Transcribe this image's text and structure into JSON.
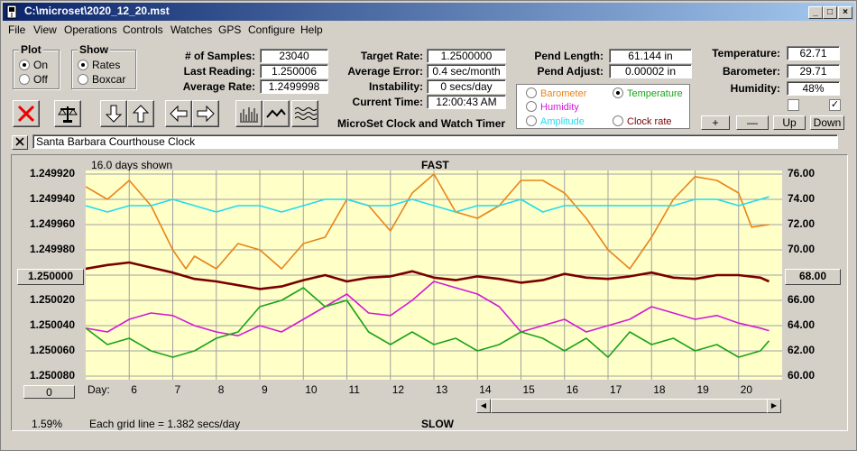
{
  "window": {
    "title": "C:\\microset\\2020_12_20.mst"
  },
  "menu": [
    "File",
    "View",
    "Operations",
    "Controls",
    "Watches",
    "GPS",
    "Configure",
    "Help"
  ],
  "plot_group": {
    "title": "Plot",
    "on": "On",
    "off": "Off",
    "selected": "On"
  },
  "show_group": {
    "title": "Show",
    "rates": "Rates",
    "boxcar": "Boxcar",
    "selected": "Rates"
  },
  "stats": {
    "samples_label": "# of Samples:",
    "samples": "23040",
    "last_reading_label": "Last Reading:",
    "last_reading": "1.250006",
    "average_rate_label": "Average Rate:",
    "average_rate": "1.2499998",
    "target_rate_label": "Target Rate:",
    "target_rate": "1.2500000",
    "average_error_label": "Average Error:",
    "average_error": "0.4 sec/month",
    "instability_label": "Instability:",
    "instability": "0 secs/day",
    "current_time_label": "Current Time:",
    "current_time": "12:00:43 AM",
    "pend_length_label": "Pend Length:",
    "pend_length": "61.144 in",
    "pend_adjust_label": "Pend Adjust:",
    "pend_adjust": "0.00002 in",
    "temperature_label": "Temperature:",
    "temperature": "62.71",
    "barometer_label": "Barometer:",
    "barometer": "29.71",
    "humidity_label": "Humidity:",
    "humidity": "48%"
  },
  "app_caption": "MicroSet Clock and Watch Timer",
  "legend": {
    "barometer": "Barometer",
    "temperature": "Temperature",
    "humidity": "Humidity",
    "amplitude": "Amplitude",
    "clock_rate": "Clock rate",
    "selected": "Temperature"
  },
  "colors": {
    "barometer": "#e8841a",
    "temperature": "#19a319",
    "humidity": "#d41ad4",
    "amplitude": "#22dcee",
    "clock_rate": "#7a0000",
    "plot_bg": "#ffffc8"
  },
  "scale_buttons": {
    "plus": "+",
    "minus": "—",
    "up": "Up",
    "down": "Down"
  },
  "clock_name": "Santa Barbara Courthouse Clock",
  "chart": {
    "days_shown": "16.0 days shown",
    "fast_label": "FAST",
    "slow_label": "SLOW",
    "center_left": "1.250000",
    "center_right": "68.00",
    "zero_button": "0",
    "day_prefix": "Day:",
    "grid_note": "Each grid line = 1.382 secs/day",
    "percent": "1.59%"
  },
  "chart_data": {
    "type": "line",
    "title": "FAST / SLOW",
    "xlabel": "Day",
    "x_ticks": [
      6,
      7,
      8,
      9,
      10,
      11,
      12,
      13,
      14,
      15,
      16,
      17,
      18,
      19,
      20
    ],
    "xlim": [
      5.0,
      21.0
    ],
    "left_axis": {
      "ticks": [
        "1.249920",
        "1.249940",
        "1.249960",
        "1.249980",
        "1.250000",
        "1.250020",
        "1.250040",
        "1.250060",
        "1.250080"
      ],
      "ylim": [
        1.24992,
        1.25008
      ],
      "reversed": true
    },
    "right_axis": {
      "ticks": [
        "76.00",
        "74.00",
        "72.00",
        "70.00",
        "68.00",
        "66.00",
        "64.00",
        "62.00",
        "60.00"
      ],
      "ylim": [
        60,
        76
      ]
    },
    "series": [
      {
        "name": "Barometer",
        "x": [
          5.0,
          5.5,
          6.0,
          6.5,
          7.0,
          7.3,
          7.5,
          8.0,
          8.5,
          9.0,
          9.5,
          10.0,
          10.5,
          11.0,
          11.5,
          12.0,
          12.5,
          13.0,
          13.5,
          14.0,
          14.5,
          15.0,
          15.5,
          16.0,
          16.5,
          17.0,
          17.5,
          18.0,
          18.5,
          19.0,
          19.5,
          20.0,
          20.3,
          20.7
        ],
        "values": [
          75.0,
          74.0,
          75.5,
          73.5,
          70.0,
          68.5,
          69.5,
          68.5,
          70.5,
          70.0,
          68.5,
          70.5,
          71.0,
          74.0,
          73.5,
          71.5,
          74.5,
          76.0,
          73.0,
          72.5,
          73.5,
          75.5,
          75.5,
          74.5,
          72.5,
          70.0,
          68.5,
          71.0,
          74.0,
          75.8,
          75.5,
          74.5,
          71.8,
          72.0
        ]
      },
      {
        "name": "Amplitude",
        "x": [
          5.0,
          5.5,
          6.0,
          6.5,
          7.0,
          7.5,
          8.0,
          8.5,
          9.0,
          9.5,
          10.0,
          10.5,
          11.0,
          11.5,
          12.0,
          12.5,
          13.0,
          13.5,
          14.0,
          14.5,
          15.0,
          15.5,
          16.0,
          16.5,
          17.0,
          17.5,
          18.0,
          18.5,
          19.0,
          19.5,
          20.0,
          20.5,
          20.7
        ],
        "values": [
          73.5,
          73.0,
          73.5,
          73.5,
          74.0,
          73.5,
          73.0,
          73.5,
          73.5,
          73.0,
          73.5,
          74.0,
          74.0,
          73.5,
          73.5,
          74.0,
          73.5,
          73.0,
          73.5,
          73.5,
          74.0,
          73.0,
          73.5,
          73.5,
          73.5,
          73.5,
          73.5,
          73.5,
          74.0,
          74.0,
          73.5,
          74.0,
          74.2
        ]
      },
      {
        "name": "Clock rate",
        "x": [
          5.0,
          5.5,
          6.0,
          6.5,
          7.0,
          7.5,
          8.0,
          8.5,
          9.0,
          9.5,
          10.0,
          10.5,
          11.0,
          11.5,
          12.0,
          12.5,
          13.0,
          13.5,
          14.0,
          14.5,
          15.0,
          15.5,
          16.0,
          16.5,
          17.0,
          17.5,
          18.0,
          18.5,
          19.0,
          19.5,
          20.0,
          20.5,
          20.7
        ],
        "values": [
          1.249995,
          1.249992,
          1.24999,
          1.249994,
          1.249998,
          1.250003,
          1.250005,
          1.250008,
          1.250011,
          1.250009,
          1.250004,
          1.25,
          1.250005,
          1.250002,
          1.250001,
          1.249997,
          1.250002,
          1.250004,
          1.250001,
          1.250003,
          1.250006,
          1.250004,
          1.249999,
          1.250002,
          1.250003,
          1.250001,
          1.249998,
          1.250002,
          1.250003,
          1.25,
          1.25,
          1.250002,
          1.250005
        ]
      },
      {
        "name": "Humidity",
        "x": [
          5.0,
          5.5,
          6.0,
          6.5,
          7.0,
          7.5,
          8.0,
          8.5,
          9.0,
          9.5,
          10.0,
          10.5,
          11.0,
          11.5,
          12.0,
          12.5,
          13.0,
          13.5,
          14.0,
          14.5,
          15.0,
          15.5,
          16.0,
          16.5,
          17.0,
          17.5,
          18.0,
          18.5,
          19.0,
          19.5,
          20.0,
          20.5,
          20.7
        ],
        "values": [
          63.8,
          63.5,
          64.5,
          65.0,
          64.8,
          64.0,
          63.5,
          63.2,
          64.0,
          63.5,
          64.5,
          65.5,
          66.5,
          65.0,
          64.8,
          66.0,
          67.5,
          67.0,
          66.5,
          65.5,
          63.5,
          64.0,
          64.5,
          63.5,
          64.0,
          64.5,
          65.5,
          65.0,
          64.5,
          64.8,
          64.2,
          63.8,
          63.6
        ]
      },
      {
        "name": "Temperature",
        "x": [
          5.0,
          5.5,
          6.0,
          6.5,
          7.0,
          7.5,
          8.0,
          8.5,
          9.0,
          9.5,
          10.0,
          10.5,
          11.0,
          11.5,
          12.0,
          12.5,
          13.0,
          13.5,
          14.0,
          14.5,
          15.0,
          15.5,
          16.0,
          16.5,
          17.0,
          17.5,
          18.0,
          18.5,
          19.0,
          19.5,
          20.0,
          20.5,
          20.7
        ],
        "values": [
          63.8,
          62.5,
          63.0,
          62.0,
          61.5,
          62.0,
          63.0,
          63.5,
          65.5,
          66.0,
          67.0,
          65.5,
          66.0,
          63.5,
          62.5,
          63.5,
          62.5,
          63.0,
          62.0,
          62.5,
          63.5,
          63.0,
          62.0,
          63.0,
          61.5,
          63.5,
          62.5,
          63.0,
          62.0,
          62.5,
          61.5,
          62.0,
          62.8
        ]
      }
    ]
  }
}
